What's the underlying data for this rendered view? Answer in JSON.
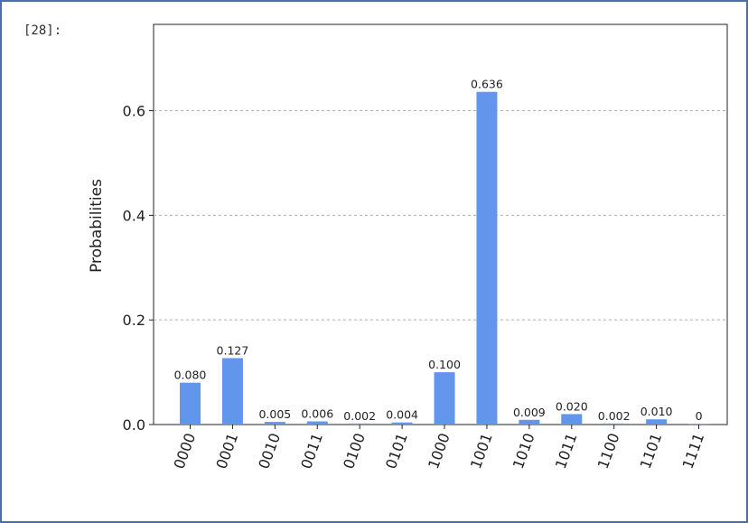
{
  "cell": {
    "prompt": "[28]:"
  },
  "chart_data": {
    "type": "bar",
    "title": "",
    "xlabel": "",
    "ylabel": "Probabilities",
    "ylim": [
      0,
      0.765
    ],
    "yticks": [
      "0.0",
      "0.2",
      "0.4",
      "0.6"
    ],
    "ytick_values": [
      0,
      0.2,
      0.4,
      0.6
    ],
    "grid": "horizontal dashed",
    "bar_color": "#6495ed",
    "categories": [
      "0000",
      "0001",
      "0010",
      "0011",
      "0100",
      "0101",
      "1000",
      "1001",
      "1010",
      "1011",
      "1100",
      "1101",
      "1111"
    ],
    "values": [
      0.08,
      0.127,
      0.005,
      0.006,
      0.002,
      0.004,
      0.1,
      0.636,
      0.009,
      0.02,
      0.002,
      0.01,
      0
    ],
    "value_labels": [
      "0.080",
      "0.127",
      "0.005",
      "0.006",
      "0.002",
      "0.004",
      "0.100",
      "0.636",
      "0.009",
      "0.020",
      "0.002",
      "0.010",
      "0"
    ]
  }
}
